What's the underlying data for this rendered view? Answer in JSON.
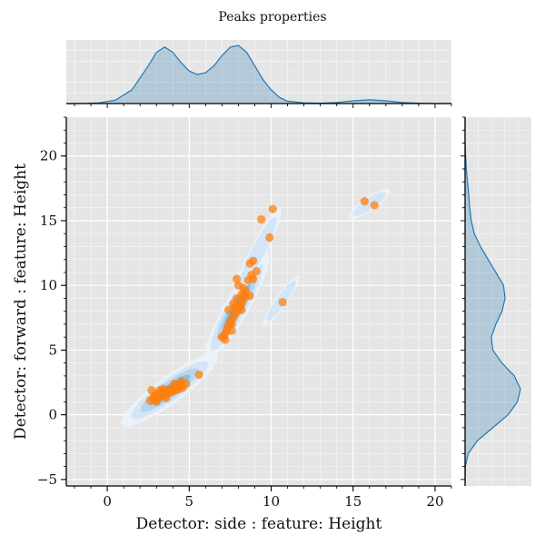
{
  "chart_data": {
    "type": "scatter",
    "title": "Peaks properties",
    "xlabel": "Detector: side : feature: Height",
    "ylabel": "Detector: forward : feature: Height",
    "xlim": [
      -2.5,
      21.0
    ],
    "ylim": [
      -5.5,
      23.0
    ],
    "xticks": [
      0,
      5,
      10,
      15,
      20
    ],
    "yticks": [
      -5,
      0,
      5,
      10,
      15,
      20
    ],
    "xtick_labels": [
      "0",
      "5",
      "10",
      "15",
      "20"
    ],
    "ytick_labels": [
      "−5",
      "0",
      "5",
      "10",
      "15",
      "20"
    ],
    "grid": true,
    "background": "#e5e5e5",
    "scatter_color": "#ff7f0e",
    "kde_color": "#1f77b4",
    "points": [
      [
        2.6,
        1.1
      ],
      [
        2.8,
        1.3
      ],
      [
        2.9,
        1.5
      ],
      [
        3.0,
        1.2
      ],
      [
        3.1,
        1.6
      ],
      [
        3.2,
        1.4
      ],
      [
        3.3,
        1.7
      ],
      [
        3.4,
        1.5
      ],
      [
        3.5,
        1.8
      ],
      [
        3.6,
        1.6
      ],
      [
        3.7,
        1.9
      ],
      [
        3.8,
        1.7
      ],
      [
        3.9,
        2.0
      ],
      [
        4.0,
        1.8
      ],
      [
        4.1,
        2.1
      ],
      [
        4.2,
        1.9
      ],
      [
        4.3,
        2.2
      ],
      [
        4.4,
        2.0
      ],
      [
        4.5,
        2.3
      ],
      [
        4.6,
        2.1
      ],
      [
        2.7,
        1.9
      ],
      [
        3.0,
        1.0
      ],
      [
        3.4,
        2.0
      ],
      [
        4.8,
        2.4
      ],
      [
        5.6,
        3.1
      ],
      [
        2.9,
        1.4
      ],
      [
        3.6,
        1.3
      ],
      [
        4.1,
        2.4
      ],
      [
        4.5,
        2.6
      ],
      [
        3.2,
        1.9
      ],
      [
        7.0,
        6.0
      ],
      [
        7.2,
        6.3
      ],
      [
        7.3,
        6.6
      ],
      [
        7.4,
        6.9
      ],
      [
        7.5,
        7.2
      ],
      [
        7.6,
        7.0
      ],
      [
        7.4,
        8.1
      ],
      [
        7.7,
        7.5
      ],
      [
        7.8,
        7.8
      ],
      [
        7.9,
        8.0
      ],
      [
        8.0,
        8.2
      ],
      [
        8.1,
        8.4
      ],
      [
        8.2,
        8.6
      ],
      [
        8.3,
        8.9
      ],
      [
        8.4,
        9.2
      ],
      [
        7.8,
        8.3
      ],
      [
        7.6,
        6.5
      ],
      [
        7.2,
        5.8
      ],
      [
        7.9,
        9.0
      ],
      [
        8.2,
        8.1
      ],
      [
        7.9,
        10.5
      ],
      [
        8.0,
        10.0
      ],
      [
        8.2,
        9.3
      ],
      [
        8.3,
        9.8
      ],
      [
        8.6,
        10.4
      ],
      [
        8.7,
        11.7
      ],
      [
        8.9,
        11.9
      ],
      [
        8.8,
        10.8
      ],
      [
        8.9,
        10.5
      ],
      [
        8.7,
        9.2
      ],
      [
        9.1,
        11.1
      ],
      [
        9.4,
        15.1
      ],
      [
        9.9,
        13.7
      ],
      [
        10.1,
        15.9
      ],
      [
        10.7,
        8.7
      ],
      [
        15.7,
        16.5
      ],
      [
        16.3,
        16.2
      ],
      [
        7.1,
        6.1
      ],
      [
        7.7,
        8.6
      ],
      [
        8.4,
        9.6
      ]
    ],
    "marginal_x": {
      "x": [
        -2.5,
        -1.5,
        -0.5,
        0.5,
        1.5,
        2.5,
        3.0,
        3.5,
        4.0,
        4.5,
        5.0,
        5.5,
        6.0,
        6.5,
        7.0,
        7.5,
        8.0,
        8.5,
        9.0,
        9.5,
        10.0,
        10.5,
        11.0,
        12.0,
        13.0,
        14.0,
        15.0,
        16.0,
        17.0,
        18.0,
        19.0,
        20.0,
        21.0
      ],
      "density": [
        0.0,
        0.0,
        0.002,
        0.01,
        0.04,
        0.11,
        0.15,
        0.165,
        0.15,
        0.12,
        0.095,
        0.085,
        0.09,
        0.11,
        0.14,
        0.165,
        0.17,
        0.15,
        0.11,
        0.07,
        0.04,
        0.018,
        0.007,
        0.002,
        0.001,
        0.003,
        0.008,
        0.011,
        0.008,
        0.003,
        0.001,
        0.0,
        0.0
      ]
    },
    "marginal_y": {
      "y": [
        -5.5,
        -4.0,
        -3.0,
        -2.0,
        -1.0,
        0.0,
        1.0,
        2.0,
        3.0,
        4.0,
        5.0,
        6.0,
        7.0,
        8.0,
        9.0,
        10.0,
        11.0,
        12.0,
        13.0,
        14.0,
        15.0,
        16.0,
        17.0,
        18.0,
        19.0,
        20.0,
        21.0,
        23.0
      ],
      "density": [
        0.0,
        0.001,
        0.01,
        0.04,
        0.09,
        0.14,
        0.17,
        0.18,
        0.16,
        0.12,
        0.09,
        0.085,
        0.1,
        0.12,
        0.13,
        0.125,
        0.1,
        0.075,
        0.05,
        0.03,
        0.02,
        0.015,
        0.012,
        0.008,
        0.004,
        0.002,
        0.0,
        0.0
      ]
    }
  }
}
